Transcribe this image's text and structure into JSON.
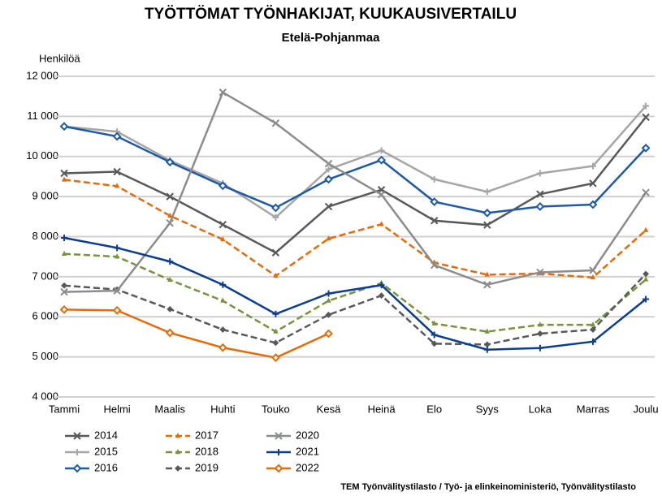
{
  "chart_data": {
    "type": "line",
    "title": "TYÖTTÖMAT TYÖNHAKIJAT, KUUKAUSIVERTAILU",
    "subtitle": "Etelä-Pohjanmaa",
    "y_label": "Henkilöä",
    "source": "TEM Työnvälitystilasto / Työ- ja elinkeinoministeriö, Työnvälitystilasto",
    "categories": [
      "Tammi",
      "Helmi",
      "Maalis",
      "Huhti",
      "Touko",
      "Kesä",
      "Heinä",
      "Elo",
      "Syys",
      "Loka",
      "Marras",
      "Joulu"
    ],
    "ylim": [
      4000,
      12000
    ],
    "yticks": [
      {
        "value": 4000,
        "label": "4 000"
      },
      {
        "value": 5000,
        "label": "5 000"
      },
      {
        "value": 6000,
        "label": "6 000"
      },
      {
        "value": 7000,
        "label": "7 000"
      },
      {
        "value": 8000,
        "label": "8 000"
      },
      {
        "value": 9000,
        "label": "9 000"
      },
      {
        "value": 10000,
        "label": "10 000"
      },
      {
        "value": 11000,
        "label": "11 000"
      },
      {
        "value": 12000,
        "label": "12 000"
      }
    ],
    "grid": true,
    "series": [
      {
        "name": "2014",
        "color": "#595959",
        "dash": false,
        "marker": "x",
        "values": [
          9580,
          9620,
          9000,
          8300,
          7600,
          8750,
          9170,
          8400,
          8290,
          9060,
          9330,
          10980
        ]
      },
      {
        "name": "2015",
        "color": "#a6a6a6",
        "dash": false,
        "marker": "plus",
        "values": [
          10750,
          10620,
          9900,
          9330,
          8480,
          9680,
          10150,
          9430,
          9120,
          9580,
          9760,
          11260
        ]
      },
      {
        "name": "2016",
        "color": "#1f5aa6",
        "dash": false,
        "marker": "diamond",
        "values": [
          10750,
          10500,
          9860,
          9270,
          8720,
          9430,
          9910,
          8870,
          8590,
          8750,
          8800,
          10210
        ]
      },
      {
        "name": "2017",
        "color": "#e36c0a",
        "dash": true,
        "marker": "triangle",
        "values": [
          9420,
          9260,
          8520,
          7930,
          7020,
          7950,
          8310,
          7350,
          7050,
          7080,
          6980,
          8160
        ]
      },
      {
        "name": "2018",
        "color": "#77933c",
        "dash": true,
        "marker": "triangle",
        "values": [
          7570,
          7500,
          6920,
          6400,
          5630,
          6400,
          6840,
          5830,
          5630,
          5800,
          5800,
          6930
        ]
      },
      {
        "name": "2019",
        "color": "#595959",
        "dash": true,
        "marker": "diamond",
        "values": [
          6780,
          6680,
          6190,
          5680,
          5350,
          6050,
          6530,
          5330,
          5310,
          5580,
          5680,
          7070
        ]
      },
      {
        "name": "2020",
        "color": "#8c8c8c",
        "dash": false,
        "marker": "x",
        "values": [
          6620,
          6650,
          8340,
          11600,
          10830,
          9820,
          9050,
          7290,
          6800,
          7110,
          7160,
          9100
        ]
      },
      {
        "name": "2021",
        "color": "#0b3d91",
        "dash": false,
        "marker": "plus",
        "values": [
          7970,
          7720,
          7380,
          6800,
          6070,
          6580,
          6790,
          5550,
          5180,
          5220,
          5380,
          6440
        ]
      },
      {
        "name": "2022",
        "color": "#e36c0a",
        "dash": false,
        "marker": "diamond",
        "values": [
          6180,
          6160,
          5600,
          5230,
          4980,
          5580,
          null,
          null,
          null,
          null,
          null,
          null
        ]
      }
    ]
  }
}
